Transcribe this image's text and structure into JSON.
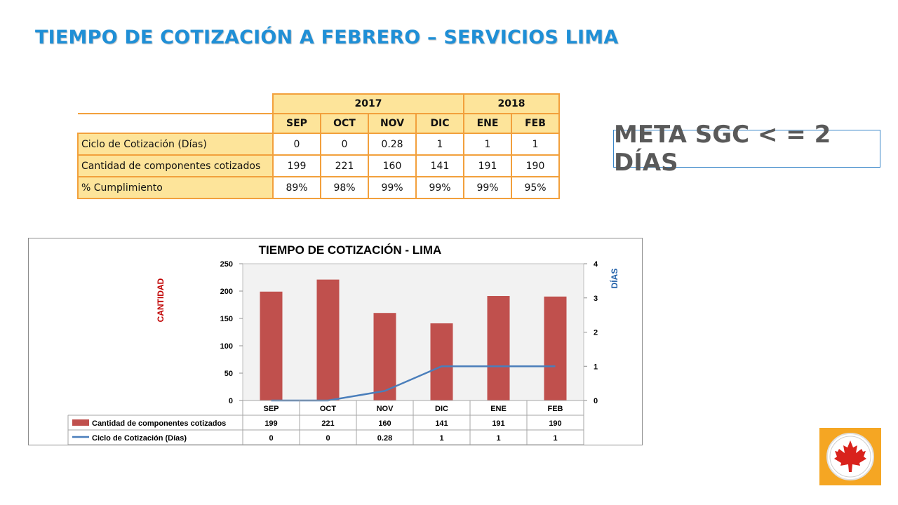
{
  "slide": {
    "title": "TIEMPO DE COTIZACIÓN A FEBRERO – SERVICIOS LIMA",
    "meta": "META SGC < = 2 DÍAS"
  },
  "summary_table": {
    "years": [
      {
        "label": "2017",
        "span": 4
      },
      {
        "label": "2018",
        "span": 2
      }
    ],
    "months": [
      "SEP",
      "OCT",
      "NOV",
      "DIC",
      "ENE",
      "FEB"
    ],
    "rows": [
      {
        "label": "Ciclo de Cotización (Días)",
        "values": [
          "0",
          "0",
          "0.28",
          "1",
          "1",
          "1"
        ]
      },
      {
        "label": "Cantidad de componentes cotizados",
        "values": [
          "199",
          "221",
          "160",
          "141",
          "191",
          "190"
        ]
      },
      {
        "label": "% Cumplimiento",
        "values": [
          "89%",
          "98%",
          "99%",
          "99%",
          "99%",
          "95%"
        ]
      }
    ]
  },
  "chart_data": {
    "type": "bar",
    "title": "TIEMPO DE COTIZACIÓN - LIMA",
    "categories": [
      "SEP",
      "OCT",
      "NOV",
      "DIC",
      "ENE",
      "FEB"
    ],
    "ylabel": "CANTIDAD",
    "y2label": "DÍAS",
    "ylim": [
      0,
      250
    ],
    "y2lim": [
      0,
      4
    ],
    "yticks": [
      0,
      50,
      100,
      150,
      200,
      250
    ],
    "y2ticks": [
      0,
      1,
      2,
      3,
      4
    ],
    "grid": false,
    "legend": "data-table-below",
    "series": [
      {
        "name": "Cantidad de componentes cotizados",
        "type": "bar",
        "axis": "left",
        "values": [
          199,
          221,
          160,
          141,
          191,
          190
        ],
        "labels": [
          "199",
          "221",
          "160",
          "141",
          "191",
          "190"
        ],
        "color": "#c0504d"
      },
      {
        "name": "Ciclo de Cotización (Días)",
        "type": "line",
        "axis": "right",
        "values": [
          0,
          0,
          0.28,
          1,
          1,
          1
        ],
        "labels": [
          "0",
          "0",
          "0.28",
          "1",
          "1",
          "1"
        ],
        "color": "#4a7ebb"
      }
    ]
  },
  "colors": {
    "title": "#1f8fd6",
    "table_border": "#f2a03c",
    "table_header_fill": "#fde49a",
    "ylabel": "#c00000",
    "y2label": "#1f5fa8",
    "plot_bg": "#f2f2f2",
    "logo_bg": "#f5a623"
  },
  "logo": {
    "icon": "maple-leaf-icon"
  }
}
